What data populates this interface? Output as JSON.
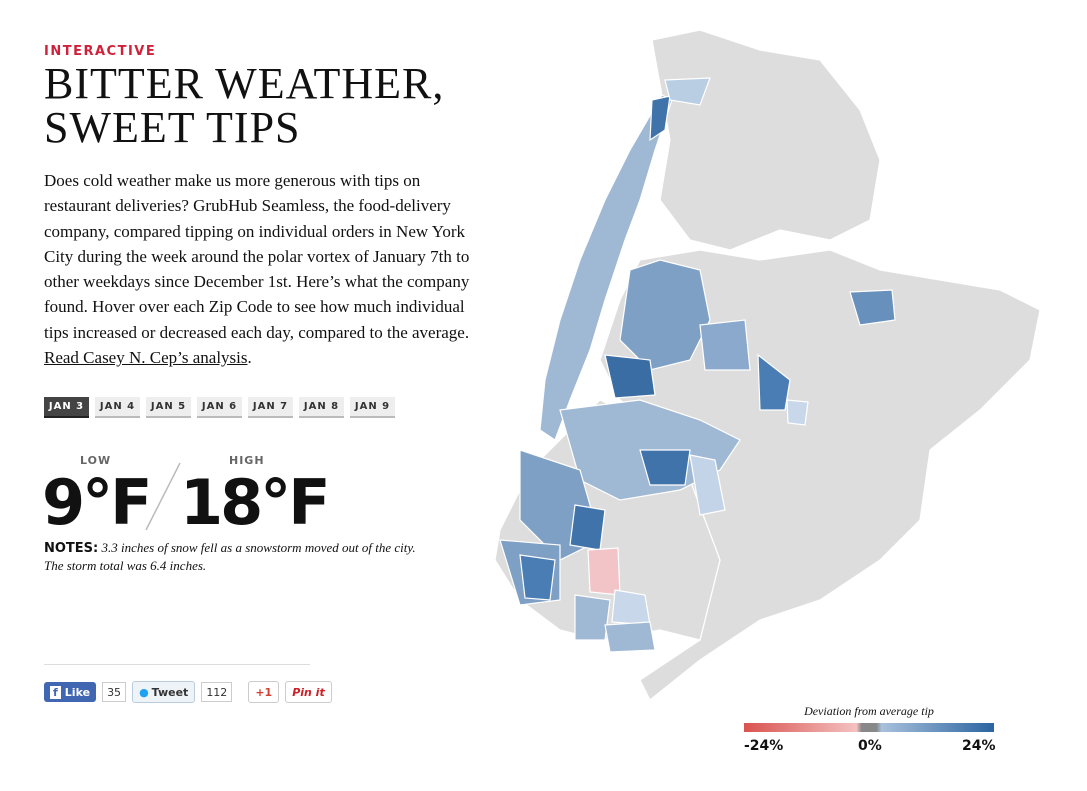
{
  "header": {
    "kicker": "INTERACTIVE",
    "title": [
      "BITTER WEATHER,",
      "SWEET TIPS"
    ]
  },
  "intro": {
    "text": "Does cold weather make us more generous with tips on restaurant deliveries? GrubHub Seamless, the food-delivery company, compared tipping on individual orders in New York City during the week around the polar vortex of January 7th to other weekdays since December 1st. Here’s what the company found. Hover over each Zip Code to see how much individual tips increased or decreased each day, compared to the average. ",
    "link": "Read Casey N. Cep’s analysis",
    "end": "."
  },
  "date_tabs": [
    {
      "label": "JAN 3",
      "selected": true
    },
    {
      "label": "JAN 4",
      "selected": false
    },
    {
      "label": "JAN 5",
      "selected": false
    },
    {
      "label": "JAN 6",
      "selected": false
    },
    {
      "label": "JAN 7",
      "selected": false
    },
    {
      "label": "JAN 8",
      "selected": false
    },
    {
      "label": "JAN 9",
      "selected": false
    }
  ],
  "temperature": {
    "low_label": "LOW",
    "low": "9°F",
    "high_label": "HIGH",
    "high": "18°F"
  },
  "notes": {
    "label": "NOTES:",
    "text": "3.3 inches of snow fell as a snowstorm moved out of the city. The storm total was 6.4 inches."
  },
  "social": {
    "like": "Like",
    "like_count": 35,
    "tweet": "Tweet",
    "tweet_count": 112,
    "gplus": "+1",
    "pinterest": "Pin it"
  },
  "legend": {
    "title": "Deviation from average tip",
    "labels": [
      "-24%",
      "0%",
      "24%"
    ]
  }
}
